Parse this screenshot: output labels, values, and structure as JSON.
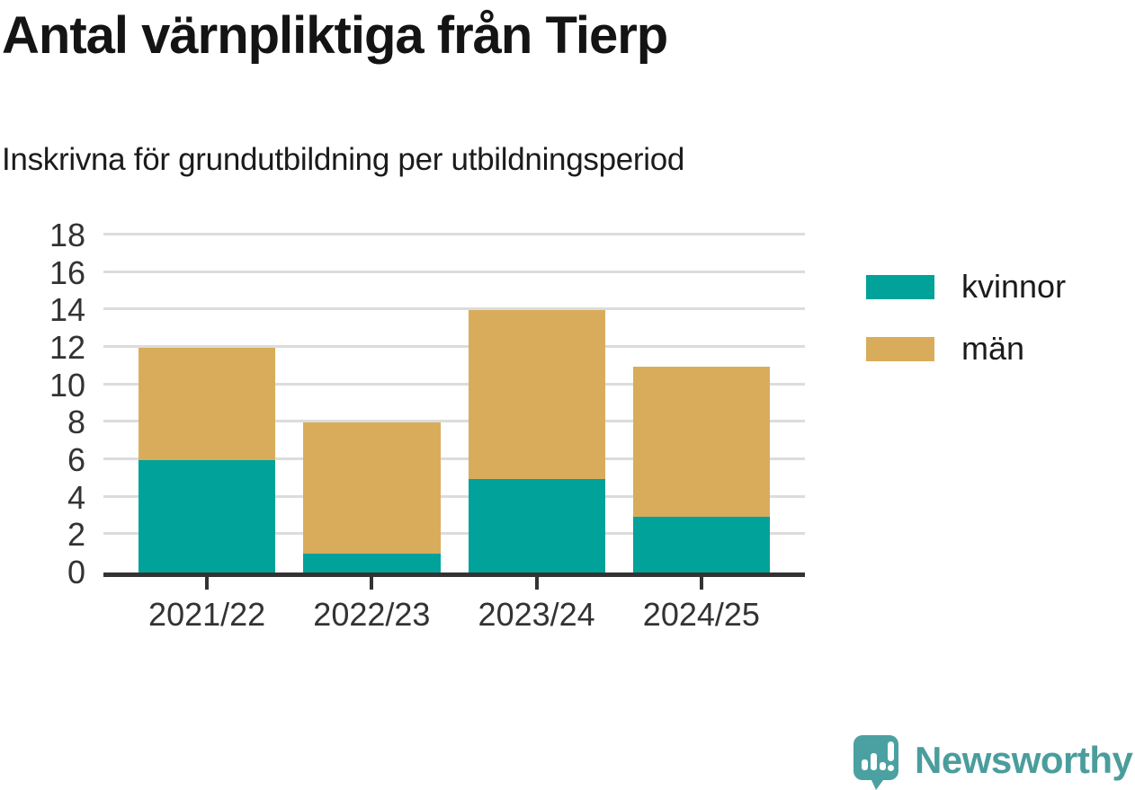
{
  "title": "Antal värnpliktiga från Tierp",
  "subtitle": "Inskrivna för grundutbildning per utbildningsperiod",
  "chart_data": {
    "type": "bar",
    "stacked": true,
    "title": "Antal värnpliktiga från Tierp",
    "subtitle": "Inskrivna för grundutbildning per utbildningsperiod",
    "categories": [
      "2021/22",
      "2022/23",
      "2023/24",
      "2024/25"
    ],
    "series": [
      {
        "name": "kvinnor",
        "color": "#00a29a",
        "values": [
          6,
          1,
          5,
          3
        ]
      },
      {
        "name": "män",
        "color": "#d9ac5c",
        "values": [
          6,
          7,
          9,
          8
        ]
      }
    ],
    "stack_totals": [
      12,
      8,
      14,
      11
    ],
    "xlabel": "",
    "ylabel": "",
    "ylim": [
      0,
      18
    ],
    "yticks": [
      0,
      2,
      4,
      6,
      8,
      10,
      12,
      14,
      16,
      18
    ],
    "grid": "horizontal",
    "gridline_color": "#dcdcdc",
    "axis_color": "#333333",
    "legend_position": "right"
  },
  "legend": {
    "items": [
      {
        "label": "kvinnor",
        "color": "#00a29a"
      },
      {
        "label": "män",
        "color": "#d9ac5c"
      }
    ]
  },
  "branding": {
    "logo_icon": "newsworthy-bar-chart-speech-bubble-icon",
    "logo_text": "Newsworthy",
    "color": "#4a9d9c"
  }
}
